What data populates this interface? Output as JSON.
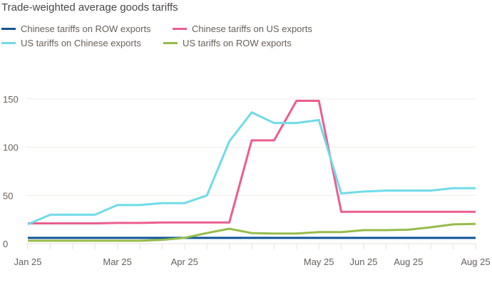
{
  "chart_data": {
    "type": "line",
    "title": "Trade-weighted average goods tariffs",
    "xlabel": "",
    "ylabel": "",
    "ylim": [
      0,
      160
    ],
    "yticks": [
      0,
      50,
      100,
      150
    ],
    "grid": true,
    "legend_position": "top-left",
    "x_tick_labels": [
      {
        "index": 0,
        "label": "Jan 25"
      },
      {
        "index": 4,
        "label": "Mar 25"
      },
      {
        "index": 7,
        "label": "Apr 25"
      },
      {
        "index": 13,
        "label": "May 25"
      },
      {
        "index": 15,
        "label": "Jun 25"
      },
      {
        "index": 17,
        "label": "Aug 25"
      },
      {
        "index": 20,
        "label": "Aug 25"
      }
    ],
    "series": [
      {
        "name": "Chinese tariffs on ROW exports",
        "color": "#0f5499",
        "values": [
          6,
          6,
          6,
          6,
          6,
          6,
          6,
          6,
          6,
          6,
          6,
          6,
          6,
          6,
          6,
          6,
          6,
          6,
          6,
          6,
          6
        ]
      },
      {
        "name": "Chinese tariffs on US exports",
        "color": "#eb5e8d",
        "values": [
          21,
          21,
          21,
          21,
          21.5,
          21.5,
          22,
          22,
          22,
          22,
          107,
          107,
          148,
          148,
          33,
          33,
          33,
          33,
          33,
          33,
          33
        ]
      },
      {
        "name": "US tariffs on Chinese exports",
        "color": "#70dbe8",
        "values": [
          20,
          30,
          30,
          30,
          40,
          40,
          42,
          42,
          50,
          106,
          136,
          125,
          125,
          128,
          52,
          54,
          55,
          55,
          55,
          57.5,
          57.5
        ]
      },
      {
        "name": "US tariffs on ROW exports",
        "color": "#96bc4b",
        "values": [
          3,
          3,
          3,
          3,
          3,
          3,
          4,
          6,
          11,
          15.5,
          11,
          10.5,
          10.5,
          12,
          12,
          14,
          14,
          14.5,
          17,
          20,
          20.5
        ]
      }
    ]
  }
}
